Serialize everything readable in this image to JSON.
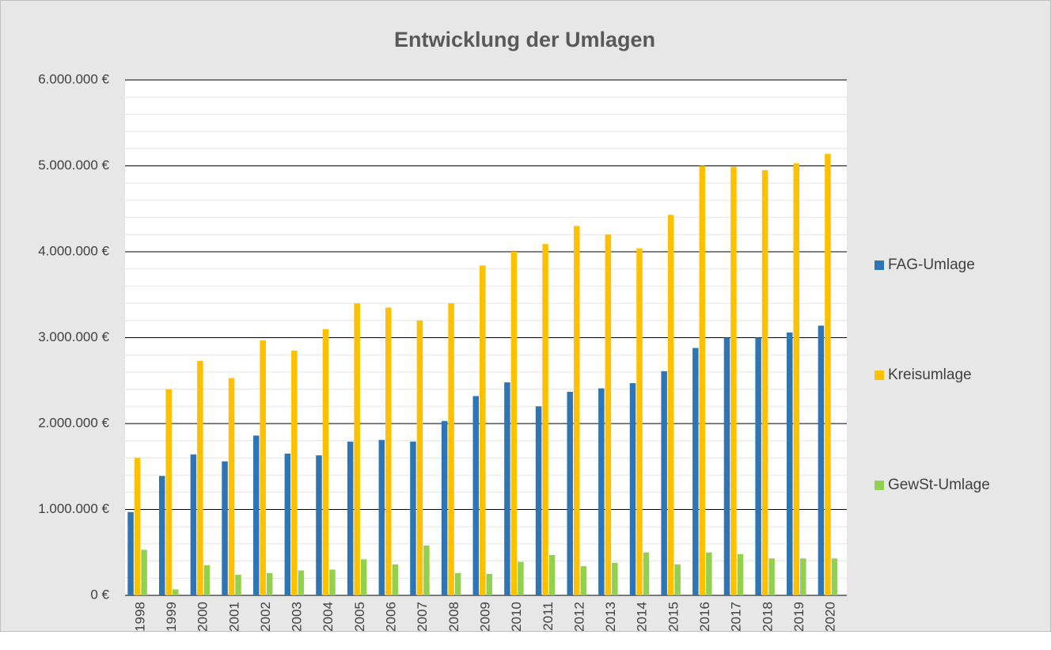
{
  "chart_data": {
    "type": "bar",
    "title": "Entwicklung der Umlagen",
    "categories": [
      "1998",
      "1999",
      "2000",
      "2001",
      "2002",
      "2003",
      "2004",
      "2005",
      "2006",
      "2007",
      "2008",
      "2009",
      "2010",
      "2011",
      "2012",
      "2013",
      "2014",
      "2015",
      "2016",
      "2017",
      "2018",
      "2019",
      "2020"
    ],
    "series": [
      {
        "name": "FAG-Umlage",
        "color": "#2e75b6",
        "values": [
          970000,
          1390000,
          1640000,
          1560000,
          1860000,
          1650000,
          1630000,
          1790000,
          1810000,
          1790000,
          2030000,
          2320000,
          2480000,
          2200000,
          2370000,
          2410000,
          2470000,
          2610000,
          2880000,
          3000000,
          3000000,
          3060000,
          3140000
        ]
      },
      {
        "name": "Kreisumlage",
        "color": "#ffc000",
        "values": [
          1600000,
          2400000,
          2730000,
          2530000,
          2970000,
          2850000,
          3100000,
          3400000,
          3350000,
          3200000,
          3400000,
          3840000,
          4000000,
          4090000,
          4300000,
          4200000,
          4040000,
          4430000,
          5000000,
          4990000,
          4950000,
          5030000,
          5140000
        ]
      },
      {
        "name": "GewSt-Umlage",
        "color": "#92d050",
        "values": [
          530000,
          70000,
          350000,
          240000,
          260000,
          290000,
          300000,
          420000,
          360000,
          580000,
          260000,
          250000,
          390000,
          470000,
          340000,
          380000,
          500000,
          360000,
          500000,
          480000,
          430000,
          430000,
          430000
        ]
      }
    ],
    "ylim": [
      0,
      6000000
    ],
    "yticks": [
      {
        "value": 0,
        "label": "0 €"
      },
      {
        "value": 1000000,
        "label": "1.000.000 €"
      },
      {
        "value": 2000000,
        "label": "2.000.000 €"
      },
      {
        "value": 3000000,
        "label": "3.000.000 €"
      },
      {
        "value": 4000000,
        "label": "4.000.000 €"
      },
      {
        "value": 5000000,
        "label": "5.000.000 €"
      },
      {
        "value": 6000000,
        "label": "6.000.000 €"
      }
    ],
    "minor_yticks": [
      200000,
      400000,
      600000,
      800000,
      1200000,
      1400000,
      1600000,
      1800000,
      2200000,
      2400000,
      2600000,
      2800000,
      3200000,
      3400000,
      3600000,
      3800000,
      4200000,
      4400000,
      4600000,
      4800000,
      5200000,
      5400000,
      5600000,
      5800000
    ],
    "grid": true,
    "legend": "right"
  }
}
